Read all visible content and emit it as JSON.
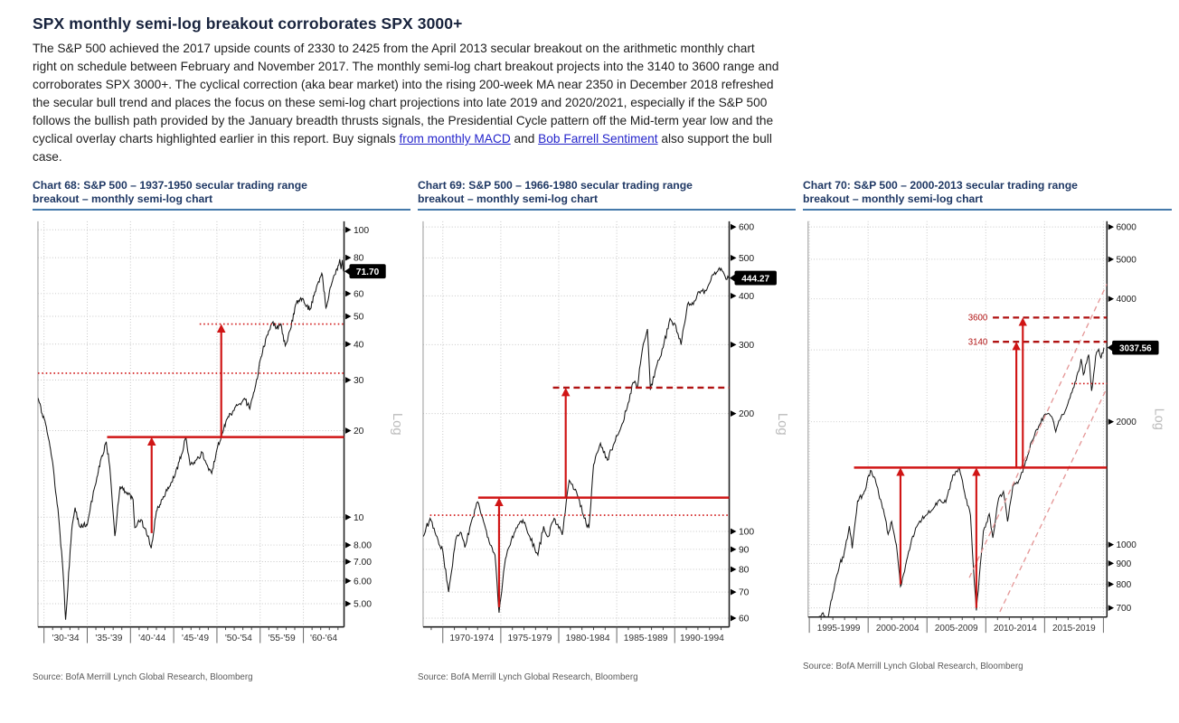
{
  "header": {
    "title": "SPX monthly semi-log breakout corroborates SPX 3000+",
    "paragraph": {
      "lead": "The S&P 500 achieved the 2017 upside counts of 2330 to 2425 from the April 2013 secular breakout on the arithmetic monthly chart right on schedule between February and November 2017. The monthly semi-log chart breakout projects into the 3140 to 3600 range and corroborates SPX 3000+. The cyclical correction (aka bear market) into the rising 200-week MA near 2350 in December 2018 refreshed the secular bull trend and places the focus on these semi-log chart projections into late 2019 and 2020/2021, especially if the S&P 500 follows the bullish path provided by the January breadth thrusts signals, the Presidential Cycle pattern off the Mid-term year low and the cyclical overlay charts highlighted earlier in this report. Buy signals ",
      "link1": "from monthly MACD",
      "mid": " and ",
      "link2": "Bob Farrell Sentiment",
      "tail": " also support the bull case."
    }
  },
  "colors": {
    "red": "#d01515",
    "dark_red": "#b01212",
    "channel": "#e59898",
    "grid": "#c6c6c6",
    "rule_blue": "#4579ab",
    "title_navy": "#1f3864",
    "link_blue": "#2424cb",
    "badge_bg": "#000000",
    "badge_text": "#ffffff"
  },
  "chart_data": [
    {
      "type": "line",
      "log_scale": true,
      "title_line1": "Chart 68: S&P 500 – 1937-1950 secular trading range",
      "title_line2": "breakout – monthly semi-log chart",
      "source": "Source:  BofA Merrill Lynch Global Research, Bloomberg",
      "y_axis_label": "Log",
      "ylim": [
        4.15,
        107
      ],
      "xlim": [
        1929.3,
        1964.7
      ],
      "y_ticks": [
        {
          "v": 100,
          "label": "100"
        },
        {
          "v": 80,
          "label": "80"
        },
        {
          "v": 60,
          "label": "60"
        },
        {
          "v": 50,
          "label": "50"
        },
        {
          "v": 40,
          "label": "40"
        },
        {
          "v": 30,
          "label": "30"
        },
        {
          "v": 20,
          "label": "20"
        },
        {
          "v": 10,
          "label": "10"
        },
        {
          "v": 8,
          "label": "8.00"
        },
        {
          "v": 7,
          "label": "7.00"
        },
        {
          "v": 6,
          "label": "6.00"
        },
        {
          "v": 5,
          "label": "5.00"
        }
      ],
      "grid_extra": [],
      "x_boundaries": [
        1930,
        1935,
        1940,
        1945,
        1950,
        1955,
        1960
      ],
      "x_labels": [
        "'30-'34",
        "'35-'39",
        "'40-'44",
        "'45-'49",
        "'50-'54",
        "'55-'59",
        "'60-'64"
      ],
      "last_price": {
        "label": "71.70",
        "v": 71.7
      },
      "noise": 0.02,
      "series": [
        [
          1929.3,
          26
        ],
        [
          1930.2,
          21
        ],
        [
          1931.0,
          15.5
        ],
        [
          1931.7,
          10
        ],
        [
          1932.2,
          6.5
        ],
        [
          1932.5,
          4.4
        ],
        [
          1933.2,
          9
        ],
        [
          1933.6,
          10.8
        ],
        [
          1934.1,
          9.3
        ],
        [
          1935.0,
          9.4
        ],
        [
          1935.8,
          12.5
        ],
        [
          1936.6,
          16
        ],
        [
          1937.2,
          18.3
        ],
        [
          1937.6,
          15
        ],
        [
          1938.2,
          8.6
        ],
        [
          1938.8,
          12.8
        ],
        [
          1939.5,
          12.2
        ],
        [
          1940.3,
          11.5
        ],
        [
          1940.5,
          9.2
        ],
        [
          1941.2,
          9.8
        ],
        [
          1941.8,
          9.0
        ],
        [
          1942.4,
          7.8
        ],
        [
          1943.0,
          10.5
        ],
        [
          1943.8,
          11.8
        ],
        [
          1944.5,
          12.8
        ],
        [
          1945.2,
          14.2
        ],
        [
          1945.9,
          16.5
        ],
        [
          1946.4,
          19.0
        ],
        [
          1946.9,
          15.2
        ],
        [
          1947.6,
          15.8
        ],
        [
          1948.3,
          16.8
        ],
        [
          1948.8,
          15.3
        ],
        [
          1949.4,
          14.2
        ],
        [
          1950.0,
          17.2
        ],
        [
          1950.6,
          19.5
        ],
        [
          1951.2,
          22
        ],
        [
          1951.9,
          23.5
        ],
        [
          1952.6,
          24.8
        ],
        [
          1953.2,
          25.9
        ],
        [
          1953.8,
          23.8
        ],
        [
          1954.5,
          29
        ],
        [
          1955.1,
          36
        ],
        [
          1955.8,
          43
        ],
        [
          1956.4,
          47.5
        ],
        [
          1956.9,
          45.5
        ],
        [
          1957.4,
          47
        ],
        [
          1957.9,
          39.5
        ],
        [
          1958.5,
          45
        ],
        [
          1959.1,
          55
        ],
        [
          1959.7,
          58
        ],
        [
          1960.2,
          55
        ],
        [
          1960.8,
          53
        ],
        [
          1961.5,
          63
        ],
        [
          1961.9,
          68
        ],
        [
          1962.2,
          69.5
        ],
        [
          1962.6,
          53.5
        ],
        [
          1963.1,
          63
        ],
        [
          1963.7,
          70
        ],
        [
          1964.0,
          75
        ],
        [
          1964.2,
          79
        ],
        [
          1964.35,
          73
        ],
        [
          1964.5,
          78.5
        ],
        [
          1964.65,
          71.7
        ]
      ],
      "lines": [
        {
          "v": 19.0,
          "from": 1937.3,
          "style": "solid"
        },
        {
          "v": 31.7,
          "from": null,
          "style": "dotted"
        },
        {
          "v": 47.0,
          "from": 1948.0,
          "style": "dotted"
        }
      ],
      "arrows": [
        {
          "x": 1942.45,
          "v_from": 8.8,
          "v_to": 19.0
        },
        {
          "x": 1950.5,
          "v_from": 19.0,
          "v_to": 47.0
        }
      ],
      "channels": []
    },
    {
      "type": "line",
      "log_scale": true,
      "title_line1": "Chart 69: S&P 500 – 1966-1980 secular trading range",
      "title_line2": "breakout – monthly semi-log chart",
      "source": "Source:  BofA Merrill Lynch Global Research, Bloomberg",
      "y_axis_label": "Log",
      "ylim": [
        57,
        620
      ],
      "xlim": [
        1968.3,
        1994.7
      ],
      "y_ticks": [
        {
          "v": 600,
          "label": "600"
        },
        {
          "v": 500,
          "label": "500"
        },
        {
          "v": 400,
          "label": "400"
        },
        {
          "v": 300,
          "label": "300"
        },
        {
          "v": 200,
          "label": "200"
        },
        {
          "v": 100,
          "label": "100"
        },
        {
          "v": 90,
          "label": "90"
        },
        {
          "v": 80,
          "label": "80"
        },
        {
          "v": 70,
          "label": "70"
        },
        {
          "v": 60,
          "label": "60"
        }
      ],
      "grid_extra": [],
      "x_boundaries": [
        1970,
        1975,
        1980,
        1985,
        1990
      ],
      "x_labels": [
        "1970-1974",
        "1975-1979",
        "1980-1984",
        "1985-1989",
        "1990-1994"
      ],
      "last_price": {
        "label": "444.27",
        "v": 444.27
      },
      "noise": 0.016,
      "series": [
        [
          1968.3,
          97
        ],
        [
          1968.9,
          108
        ],
        [
          1969.5,
          97
        ],
        [
          1970.0,
          89
        ],
        [
          1970.5,
          70
        ],
        [
          1971.1,
          95
        ],
        [
          1971.6,
          99
        ],
        [
          1971.9,
          91
        ],
        [
          1972.5,
          107
        ],
        [
          1973.0,
          119
        ],
        [
          1973.6,
          104
        ],
        [
          1974.0,
          94
        ],
        [
          1974.5,
          87
        ],
        [
          1974.85,
          62
        ],
        [
          1975.4,
          85
        ],
        [
          1975.9,
          95
        ],
        [
          1976.5,
          104
        ],
        [
          1976.9,
          107
        ],
        [
          1977.5,
          97
        ],
        [
          1978.2,
          87
        ],
        [
          1978.7,
          103
        ],
        [
          1979.1,
          97
        ],
        [
          1979.6,
          108
        ],
        [
          1980.0,
          102
        ],
        [
          1980.3,
          98
        ],
        [
          1980.9,
          135
        ],
        [
          1981.1,
          132
        ],
        [
          1981.7,
          122
        ],
        [
          1982.2,
          108
        ],
        [
          1982.6,
          102
        ],
        [
          1983.0,
          148
        ],
        [
          1983.6,
          168
        ],
        [
          1984.2,
          152
        ],
        [
          1984.7,
          166
        ],
        [
          1985.3,
          182
        ],
        [
          1985.9,
          207
        ],
        [
          1986.4,
          240
        ],
        [
          1986.8,
          235
        ],
        [
          1987.2,
          290
        ],
        [
          1987.65,
          329
        ],
        [
          1987.9,
          230
        ],
        [
          1988.4,
          262
        ],
        [
          1989.0,
          295
        ],
        [
          1989.6,
          350
        ],
        [
          1990.1,
          335
        ],
        [
          1990.55,
          300
        ],
        [
          1991.1,
          380
        ],
        [
          1991.6,
          380
        ],
        [
          1992.1,
          410
        ],
        [
          1992.7,
          412
        ],
        [
          1993.2,
          450
        ],
        [
          1993.7,
          462
        ],
        [
          1994.0,
          470
        ],
        [
          1994.35,
          448
        ],
        [
          1994.65,
          444.27
        ]
      ],
      "lines": [
        {
          "v": 122,
          "from": 1973.05,
          "style": "solid"
        },
        {
          "v": 110,
          "from": 1968.9,
          "style": "dotted"
        },
        {
          "v": 233,
          "from": 1979.5,
          "style": "dashed"
        }
      ],
      "arrows": [
        {
          "x": 1974.85,
          "v_from": 64,
          "v_to": 122
        },
        {
          "x": 1980.6,
          "v_from": 122,
          "v_to": 233
        }
      ],
      "channels": []
    },
    {
      "type": "line",
      "log_scale": true,
      "title_line1": "Chart 70: S&P 500 – 2000-2013 secular trading range",
      "title_line2": "breakout – monthly semi-log chart",
      "source": "Source:  BofA Merrill Lynch Global Research, Bloomberg",
      "y_axis_label": "Log",
      "ylim": [
        665,
        6200
      ],
      "xlim": [
        1994.9,
        2020.3
      ],
      "y_ticks": [
        {
          "v": 6000,
          "label": "6000"
        },
        {
          "v": 5000,
          "label": "5000"
        },
        {
          "v": 4000,
          "label": "4000"
        },
        {
          "v": 2000,
          "label": "2000"
        },
        {
          "v": 1000,
          "label": "1000"
        },
        {
          "v": 900,
          "label": "900"
        },
        {
          "v": 800,
          "label": "800"
        },
        {
          "v": 700,
          "label": "700"
        }
      ],
      "grid_extra": [
        3000
      ],
      "x_boundaries": [
        1995,
        2000,
        2005,
        2010,
        2015,
        2020
      ],
      "x_labels": [
        "1995-1999",
        "2000-2004",
        "2005-2009",
        "2010-2014",
        "2015-2019"
      ],
      "last_price": {
        "label": "3037.56",
        "v": 3037.56
      },
      "noise": 0.013,
      "series": [
        [
          1995.6,
          640
        ],
        [
          1996.1,
          680
        ],
        [
          1996.5,
          650
        ],
        [
          1997.0,
          760
        ],
        [
          1997.6,
          900
        ],
        [
          1997.9,
          930
        ],
        [
          1998.4,
          1110
        ],
        [
          1998.65,
          980
        ],
        [
          1999.1,
          1280
        ],
        [
          1999.6,
          1330
        ],
        [
          1999.9,
          1420
        ],
        [
          2000.2,
          1520
        ],
        [
          2000.6,
          1450
        ],
        [
          2000.9,
          1330
        ],
        [
          2001.3,
          1220
        ],
        [
          2001.7,
          1060
        ],
        [
          2002.0,
          1140
        ],
        [
          2002.4,
          1000
        ],
        [
          2002.75,
          790
        ],
        [
          2003.1,
          860
        ],
        [
          2003.7,
          1030
        ],
        [
          2004.3,
          1130
        ],
        [
          2004.9,
          1180
        ],
        [
          2005.5,
          1220
        ],
        [
          2006.1,
          1290
        ],
        [
          2006.6,
          1270
        ],
        [
          2007.2,
          1480
        ],
        [
          2007.75,
          1545
        ],
        [
          2008.2,
          1340
        ],
        [
          2008.7,
          1180
        ],
        [
          2008.95,
          880
        ],
        [
          2009.2,
          690
        ],
        [
          2009.8,
          1080
        ],
        [
          2010.3,
          1190
        ],
        [
          2010.6,
          1040
        ],
        [
          2011.1,
          1300
        ],
        [
          2011.5,
          1350
        ],
        [
          2011.85,
          1140
        ],
        [
          2012.3,
          1390
        ],
        [
          2012.9,
          1450
        ],
        [
          2013.3,
          1560
        ],
        [
          2013.9,
          1790
        ],
        [
          2014.5,
          1950
        ],
        [
          2015.1,
          2090
        ],
        [
          2015.6,
          2060
        ],
        [
          2015.95,
          1890
        ],
        [
          2016.3,
          2020
        ],
        [
          2016.9,
          2180
        ],
        [
          2017.5,
          2430
        ],
        [
          2017.9,
          2660
        ],
        [
          2018.1,
          2850
        ],
        [
          2018.3,
          2610
        ],
        [
          2018.75,
          2920
        ],
        [
          2019.0,
          2380
        ],
        [
          2019.35,
          2900
        ],
        [
          2019.6,
          3010
        ],
        [
          2019.8,
          2860
        ],
        [
          2020.05,
          3037.56
        ]
      ],
      "lines": [
        {
          "v": 1545,
          "from": 1998.8,
          "style": "solid"
        },
        {
          "v": 3600,
          "from": 2010.6,
          "style": "dashed",
          "label": "3600"
        },
        {
          "v": 3140,
          "from": 2010.6,
          "style": "dashed",
          "label": "3140"
        },
        {
          "v": 2480,
          "from": 2017.3,
          "style": "dotted"
        }
      ],
      "arrows": [
        {
          "x": 2002.75,
          "v_from": 800,
          "v_to": 1545
        },
        {
          "x": 2009.2,
          "v_from": 700,
          "v_to": 1545
        },
        {
          "x": 2012.6,
          "v_from": 1545,
          "v_to": 3140
        },
        {
          "x": 2013.15,
          "v_from": 1545,
          "v_to": 3600
        }
      ],
      "channels": [
        [
          [
            2008.6,
            830
          ],
          [
            2020.3,
            4350
          ]
        ],
        [
          [
            2011.2,
            685
          ],
          [
            2020.3,
            2420
          ]
        ]
      ]
    }
  ]
}
